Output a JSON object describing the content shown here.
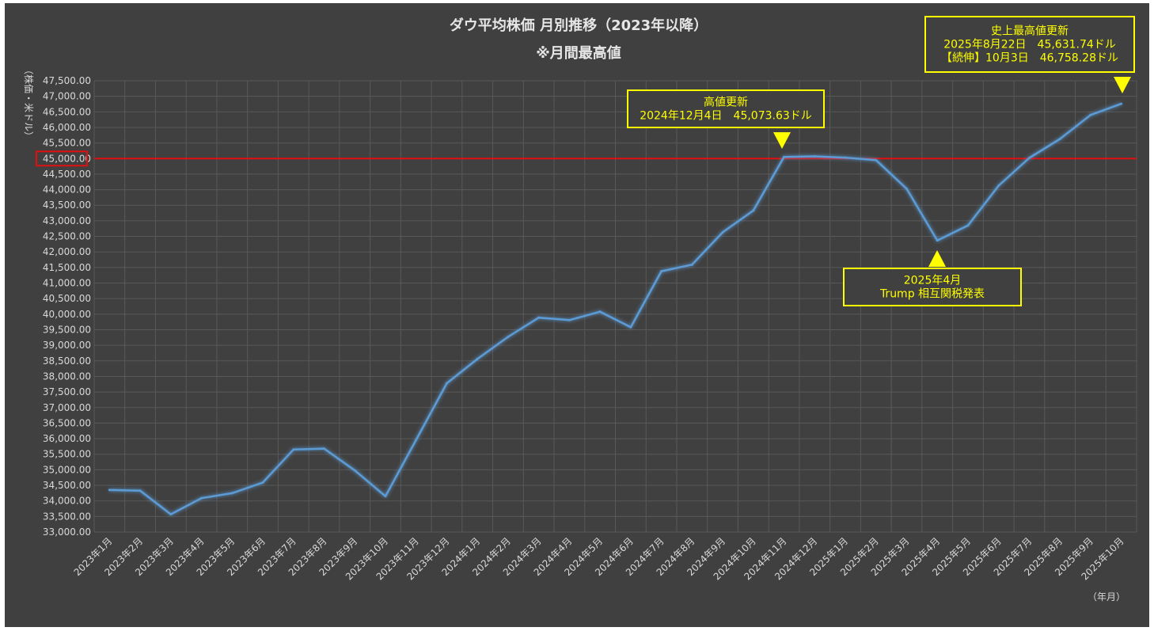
{
  "chart_data": {
    "type": "line",
    "title": "ダウ平均株価 月別推移（2023年以降）",
    "subtitle": "※月間最高値",
    "ylabel": "（株価・米ドル）",
    "xlabel": "（年月）",
    "ylim": [
      33000,
      47500
    ],
    "ytick_step": 500,
    "grid": true,
    "line_color": "#5b9bd5",
    "reference_line": {
      "value": 45000,
      "color": "#e01010",
      "label": "45,000.00"
    },
    "categories": [
      "2023年1月",
      "2023年2月",
      "2023年3月",
      "2023年4月",
      "2023年5月",
      "2023年6月",
      "2023年7月",
      "2023年8月",
      "2023年9月",
      "2023年10月",
      "2023年11月",
      "2023年12月",
      "2024年1月",
      "2024年2月",
      "2024年3月",
      "2024年4月",
      "2024年5月",
      "2024年6月",
      "2024年7月",
      "2024年8月",
      "2024年9月",
      "2024年10月",
      "2024年11月",
      "2024年12月",
      "2025年1月",
      "2025年2月",
      "2025年3月",
      "2025年4月",
      "2025年5月",
      "2025年6月",
      "2025年7月",
      "2025年8月",
      "2025年9月",
      "2025年10月"
    ],
    "values": [
      34350,
      34330,
      33570,
      34090,
      34250,
      34590,
      35650,
      35680,
      34980,
      34150,
      35960,
      37780,
      38560,
      39270,
      39890,
      39810,
      40080,
      39580,
      41380,
      41590,
      42630,
      43330,
      45050,
      45070,
      45030,
      44950,
      44030,
      42370,
      42850,
      44130,
      45020,
      45630,
      46400,
      46760
    ],
    "annotations": [
      {
        "lines": [
          "高値更新",
          "2024年12月4日　45,073.63ドル"
        ],
        "marker": "down",
        "category_index": 22
      },
      {
        "lines": [
          "2025年4月",
          "Trump 相互関税発表"
        ],
        "marker": "up",
        "category_index": 27
      },
      {
        "lines": [
          "史上最高値更新",
          "2025年8月22日　45,631.74ドル",
          "【続伸】10月3日　46,758.28ドル"
        ],
        "marker": "down",
        "category_index": 33
      }
    ],
    "annotation_color": "#ffff00"
  }
}
